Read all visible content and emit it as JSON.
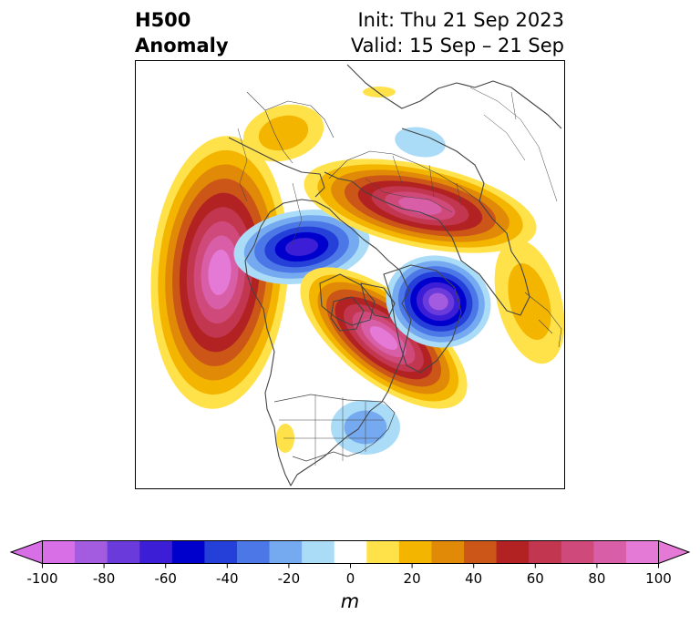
{
  "title": {
    "left_line1": "H500",
    "left_line2": "Anomaly",
    "right_line1": "Init: Thu 21 Sep 2023",
    "right_line2": "Valid: 15 Sep – 21 Sep"
  },
  "colorbar": {
    "unit": "m",
    "ticks": [
      "-100",
      "-80",
      "-60",
      "-40",
      "-20",
      "0",
      "20",
      "40",
      "60",
      "80",
      "100"
    ],
    "levels": [
      -100,
      -90,
      -80,
      -70,
      -60,
      -50,
      -40,
      -30,
      -20,
      -10,
      10,
      20,
      30,
      40,
      50,
      60,
      70,
      80,
      90,
      100
    ],
    "colors": [
      "#d86fe6",
      "#a35ce0",
      "#6a3adb",
      "#3b1ed6",
      "#0000cc",
      "#2440d8",
      "#4c77e6",
      "#75aaf0",
      "#aadcf8",
      "#ffffff",
      "#ffe14a",
      "#f4b500",
      "#e08a08",
      "#cc5518",
      "#b22222",
      "#c23650",
      "#cf4a7a",
      "#d95ea8",
      "#e47ad6"
    ],
    "under_color": "#d86fe6",
    "over_color": "#e47ad6"
  },
  "map": {
    "projection": "north-polar-stereographic",
    "coastline_color": "#444444",
    "anomaly_centers": [
      {
        "region": "North Pacific",
        "sign": "positive",
        "peak_m": 95
      },
      {
        "region": "Western Canada",
        "sign": "negative",
        "peak_m": -65
      },
      {
        "region": "Arctic Ocean",
        "sign": "positive",
        "peak_m": 95
      },
      {
        "region": "Northern Russia",
        "sign": "positive",
        "peak_m": 85
      },
      {
        "region": "Barents Sea",
        "sign": "negative",
        "peak_m": -95
      },
      {
        "region": "Eastern United States",
        "sign": "negative",
        "peak_m": -25
      }
    ]
  }
}
